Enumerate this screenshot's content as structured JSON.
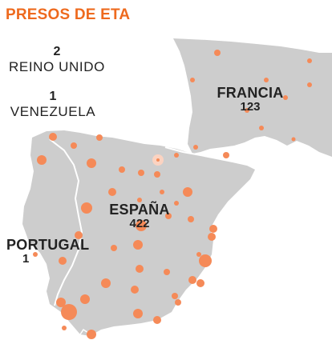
{
  "title": "PRESOS DE ETA",
  "colors": {
    "land": "#cdcdcd",
    "border": "#ffffff",
    "dot": "#f58a58",
    "dot_highlight": "#fbd3c1",
    "title": "#ee6a1e",
    "text": "#222222"
  },
  "outside_map": [
    {
      "id": "uk",
      "count": "2",
      "name": "REINO UNIDO"
    },
    {
      "id": "ve",
      "count": "1",
      "name": "VENEZUELA"
    }
  ],
  "countries": [
    {
      "id": "francia",
      "name": "FRANCIA",
      "count": "123"
    },
    {
      "id": "espana",
      "name": "ESPAÑA",
      "count": "422"
    },
    {
      "id": "portugal",
      "name": "PORTUGAL",
      "count": "1"
    }
  ]
}
